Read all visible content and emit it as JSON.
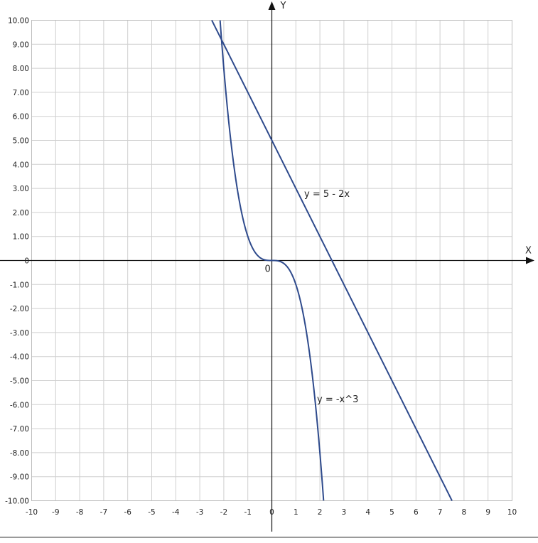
{
  "chart_data": {
    "type": "line",
    "title": "",
    "xlabel": "X",
    "ylabel": "Y",
    "xlim": [
      -10,
      10
    ],
    "ylim": [
      -10,
      10
    ],
    "grid": true,
    "origin_label": "0",
    "x_ticks": [
      "-10",
      "-9",
      "-8",
      "-7",
      "-6",
      "-5",
      "-4",
      "-3",
      "-2",
      "-1",
      "0",
      "1",
      "2",
      "3",
      "4",
      "5",
      "6",
      "7",
      "8",
      "9",
      "10"
    ],
    "y_ticks": [
      "10.00",
      "9.00",
      "8.00",
      "7.00",
      "6.00",
      "5.00",
      "4.00",
      "3.00",
      "2.00",
      "1.00",
      "0",
      "-1.00",
      "-2.00",
      "-3.00",
      "-4.00",
      "-5.00",
      "-6.00",
      "-7.00",
      "-8.00",
      "-9.00",
      "-10.00"
    ],
    "series": [
      {
        "name": "y = 5 - 2x",
        "expression": "5 - 2x",
        "color": "#2e4a8c",
        "x": [
          -2.5,
          -2,
          -1,
          0,
          1,
          2,
          2.5,
          3,
          4,
          5,
          6,
          7,
          7.5
        ],
        "y": [
          10,
          9,
          7,
          5,
          3,
          1,
          0,
          -1,
          -3,
          -5,
          -7,
          -9,
          -10
        ]
      },
      {
        "name": "y = -x^3",
        "expression": "-x^3",
        "color": "#2e4a8c",
        "x": [
          -2.154,
          -2,
          -1.5,
          -1,
          -0.5,
          0,
          0.5,
          1,
          1.5,
          2,
          2.154
        ],
        "y": [
          10,
          8,
          3.375,
          1,
          0.125,
          0,
          -0.125,
          -1,
          -3.375,
          -8,
          -10
        ]
      }
    ]
  }
}
